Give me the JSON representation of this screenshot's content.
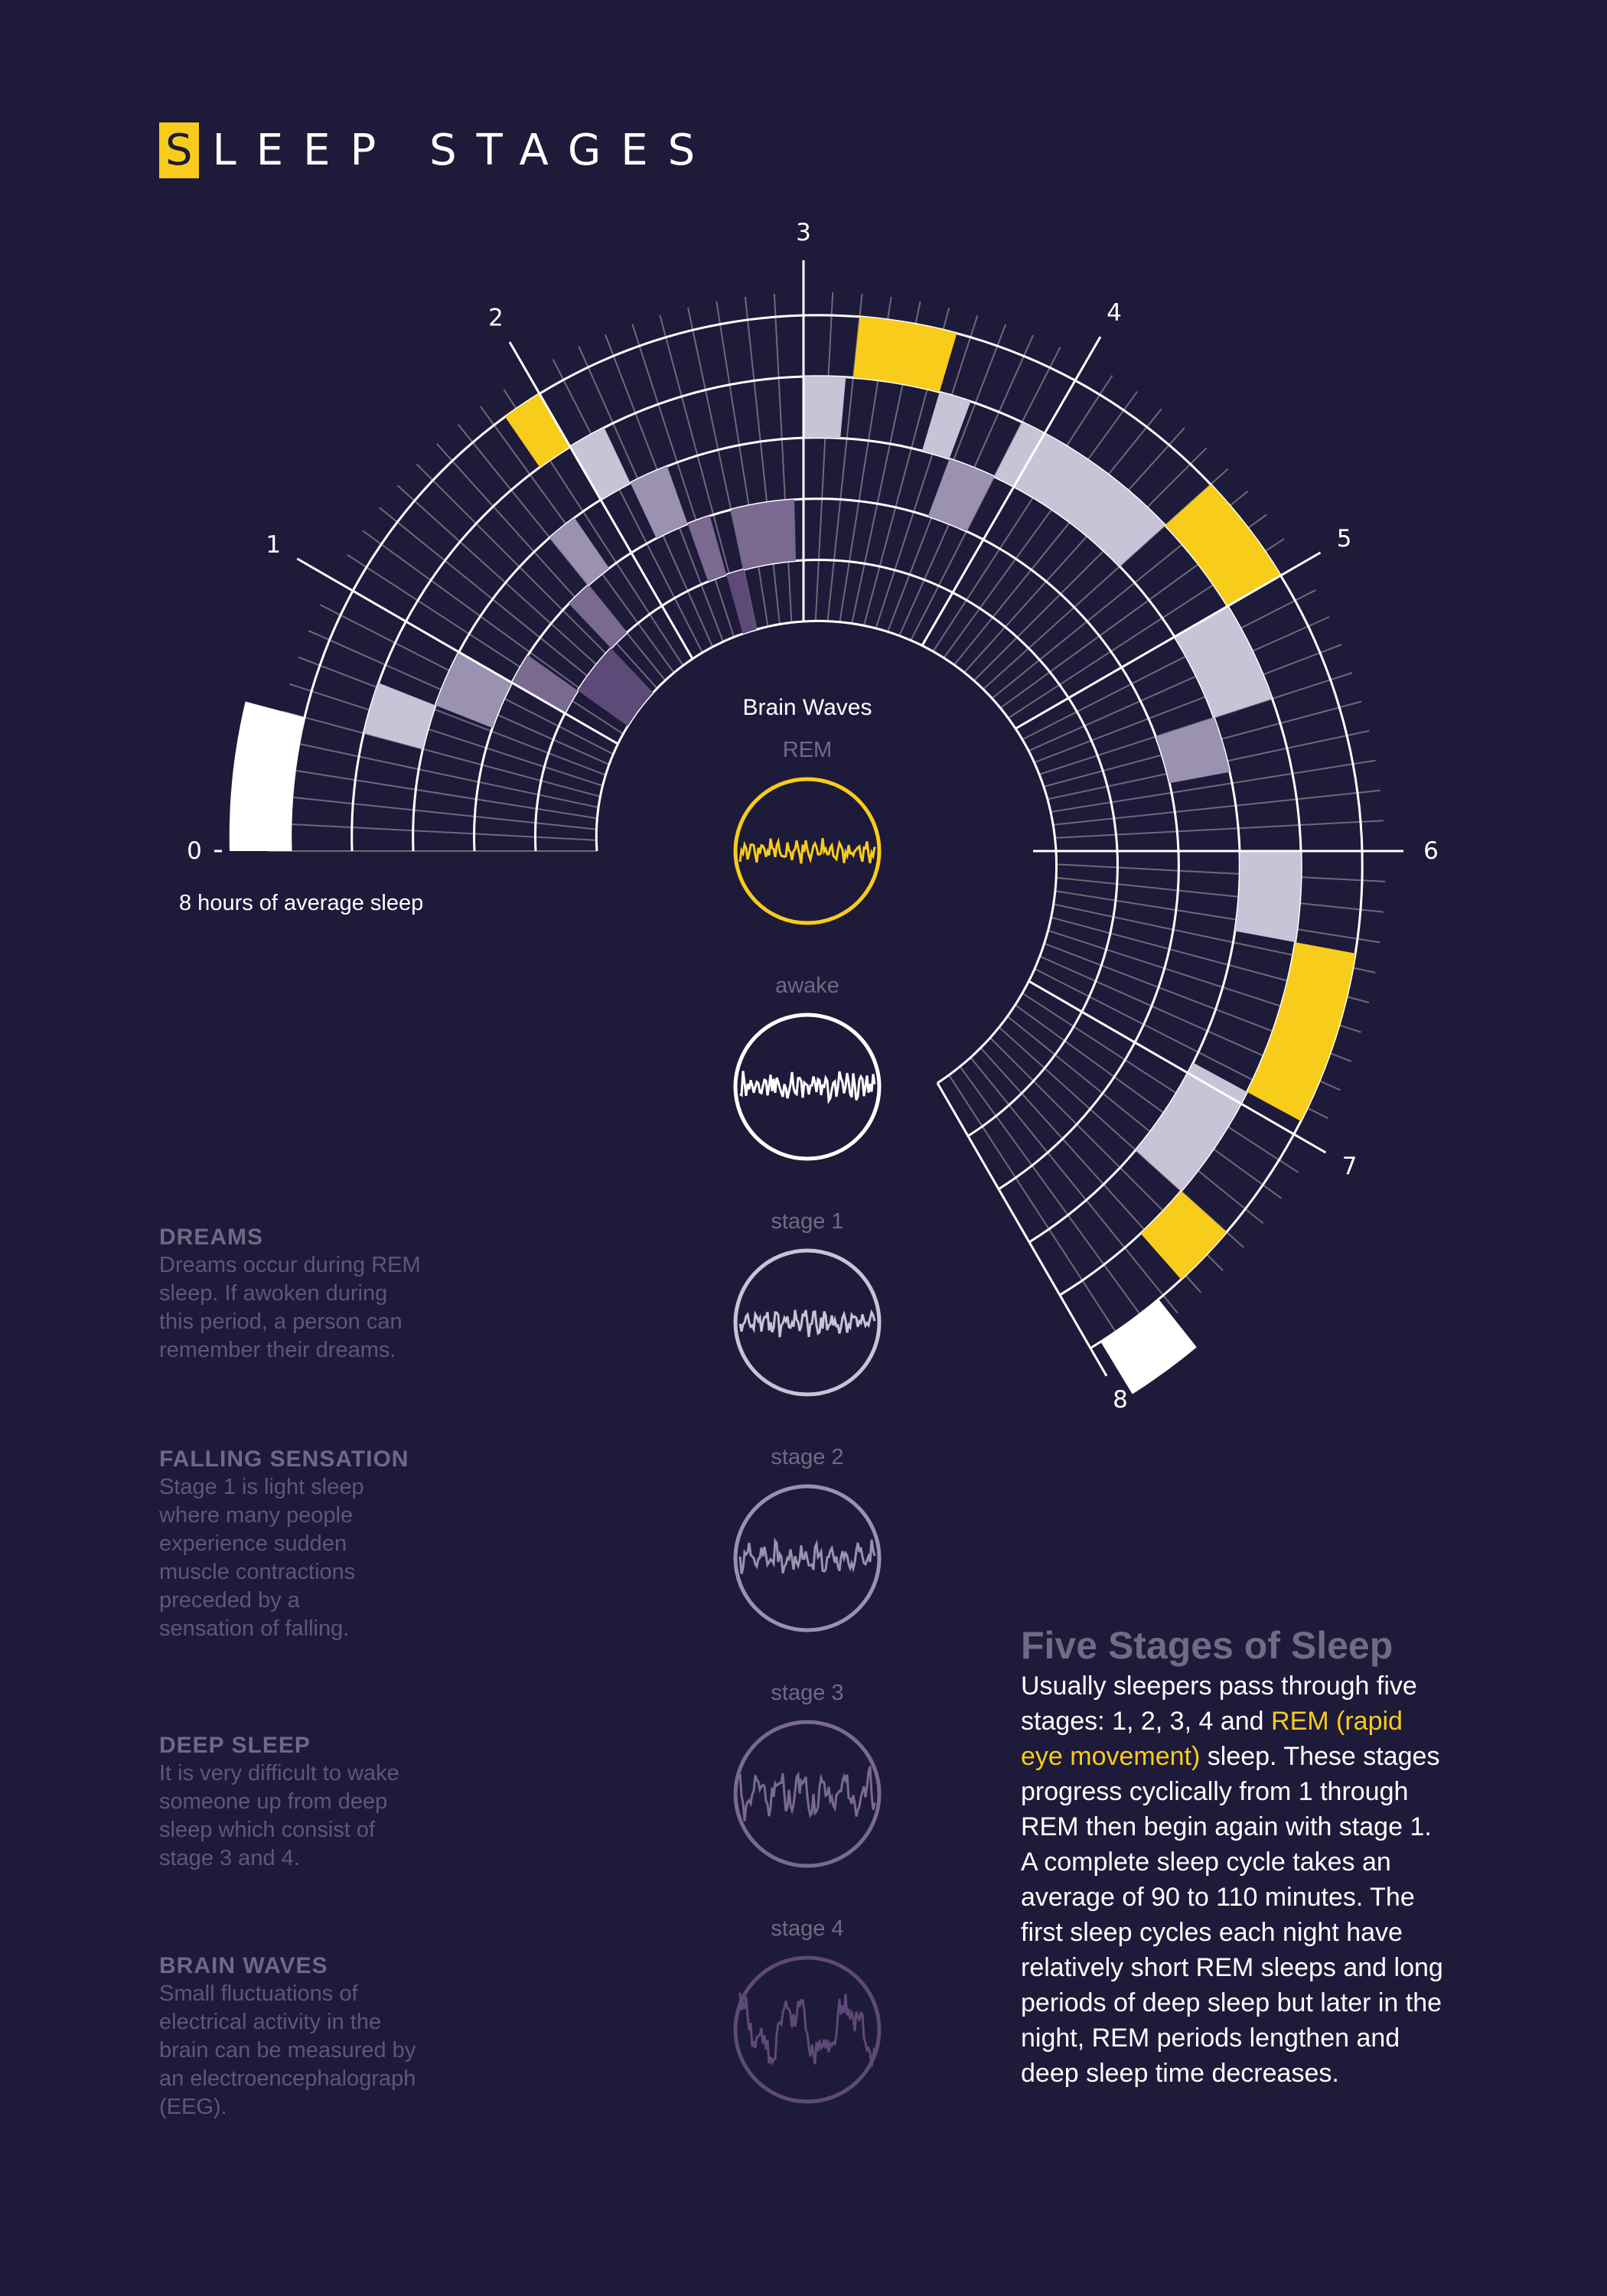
{
  "title": {
    "first_letter": "S",
    "rest": "LEEP STAGES"
  },
  "hours_label": "8 hours of average sleep",
  "hour_ticks": [
    "0",
    "1",
    "2",
    "3",
    "4",
    "5",
    "6",
    "7",
    "8"
  ],
  "brain_waves": {
    "title": "Brain Waves",
    "stages": [
      "REM",
      "awake",
      "stage 1",
      "stage 2",
      "stage 3",
      "stage 4"
    ]
  },
  "colors": {
    "background": "#1e1a39",
    "rem": "#f8cc1b",
    "awake": "#ffffff",
    "stage1": "#c8c3d6",
    "stage2": "#9b91b0",
    "stage3": "#7a6a92",
    "stage4": "#5e4a78"
  },
  "info_blocks": [
    {
      "heading": "DREAMS",
      "lines": [
        "Dreams occur during REM",
        "sleep. If awoken during",
        "this period, a person can",
        "remember their dreams."
      ]
    },
    {
      "heading": "FALLING SENSATION",
      "lines": [
        "Stage 1 is light sleep",
        "where many people",
        "experience sudden",
        "muscle contractions",
        "preceded by a",
        "sensation of falling."
      ]
    },
    {
      "heading": "DEEP SLEEP",
      "lines": [
        "It is very difficult to wake",
        "someone up from deep",
        "sleep which consist of",
        "stage 3 and 4."
      ]
    },
    {
      "heading": "BRAIN WAVES",
      "lines": [
        "Small fluctuations of",
        "electrical activity in the",
        "brain can be measured by",
        "an electroencephalograph",
        "(EEG)."
      ]
    }
  ],
  "five_stages": {
    "heading": "Five Stages of Sleep",
    "text_before": "Usually sleepers pass through five stages: 1, 2, 3, 4 and ",
    "highlight": "REM (rapid eye movement)",
    "text_after": " sleep. These stages progress cyclically from 1 through REM then begin again with stage 1. A complete sleep cycle takes an average of 90 to 110 minutes. The first sleep cycles each night have relatively short REM sleeps and long periods of deep sleep but later in the night, REM periods lengthen and deep sleep time decreases."
  },
  "sleep_segments": [
    {
      "stage": "awake",
      "start_h": 0.0,
      "end_h": 0.5
    },
    {
      "stage": "stage1",
      "start_h": 0.5,
      "end_h": 0.72
    },
    {
      "stage": "stage2",
      "start_h": 0.72,
      "end_h": 1.0
    },
    {
      "stage": "stage3",
      "start_h": 1.0,
      "end_h": 1.18
    },
    {
      "stage": "stage4",
      "start_h": 1.18,
      "end_h": 1.55
    },
    {
      "stage": "stage3",
      "start_h": 1.55,
      "end_h": 1.7
    },
    {
      "stage": "stage2",
      "start_h": 1.7,
      "end_h": 1.85
    },
    {
      "stage": "rem",
      "start_h": 1.85,
      "end_h": 2.0
    },
    {
      "stage": "stage1",
      "start_h": 2.0,
      "end_h": 2.16
    },
    {
      "stage": "stage2",
      "start_h": 2.16,
      "end_h": 2.35
    },
    {
      "stage": "stage3",
      "start_h": 2.35,
      "end_h": 2.48
    },
    {
      "stage": "stage4",
      "start_h": 2.48,
      "end_h": 2.6
    },
    {
      "stage": "stage3",
      "start_h": 2.6,
      "end_h": 2.95
    },
    {
      "stage": "stage1",
      "start_h": 3.0,
      "end_h": 3.17
    },
    {
      "stage": "rem",
      "start_h": 3.2,
      "end_h": 3.55
    },
    {
      "stage": "stage1",
      "start_h": 3.55,
      "end_h": 3.68
    },
    {
      "stage": "stage2",
      "start_h": 3.68,
      "end_h": 3.9
    },
    {
      "stage": "stage1",
      "start_h": 3.9,
      "end_h": 4.6
    },
    {
      "stage": "rem",
      "start_h": 4.6,
      "end_h": 5.0
    },
    {
      "stage": "stage1",
      "start_h": 5.0,
      "end_h": 5.4
    },
    {
      "stage": "stage2",
      "start_h": 5.4,
      "end_h": 5.65
    },
    {
      "stage": "stage1",
      "start_h": 6.0,
      "end_h": 6.35
    },
    {
      "stage": "rem",
      "start_h": 6.35,
      "end_h": 6.95
    },
    {
      "stage": "stage1",
      "start_h": 6.95,
      "end_h": 7.4
    },
    {
      "stage": "rem",
      "start_h": 7.4,
      "end_h": 7.62
    },
    {
      "stage": "awake",
      "start_h": 7.72,
      "end_h": 7.96
    }
  ]
}
